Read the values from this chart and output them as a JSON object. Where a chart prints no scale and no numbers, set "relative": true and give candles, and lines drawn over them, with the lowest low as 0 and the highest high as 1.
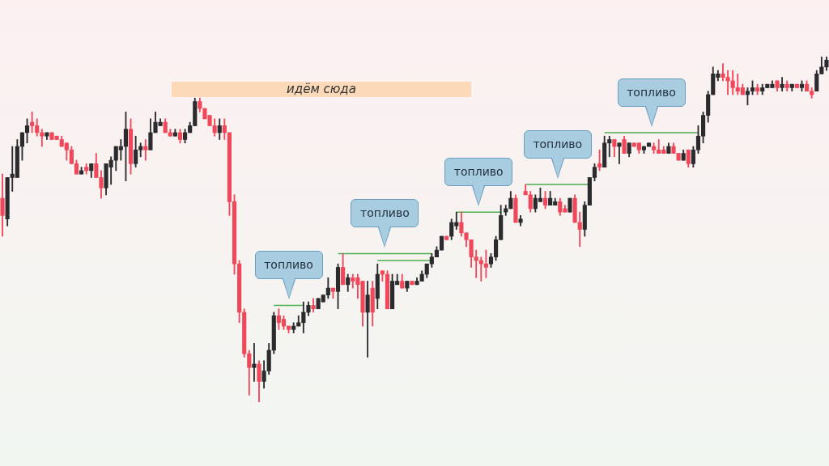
{
  "chart_data": {
    "type": "candlestick",
    "relative": true,
    "legend": false,
    "annotations": [
      "идём сюда",
      "топливо",
      "топливо",
      "топливо",
      "топливо",
      "топливо"
    ],
    "colors": [
      "#f0485a",
      "#2b2b2e",
      "#2b2b2e",
      "#2b2b2e",
      "#2b2b2e",
      "#2b2b2e",
      "#f0485a",
      "#f0485a",
      "#f0485a",
      "#2b2b2e",
      "#f0485a",
      "#f0485a",
      "#f0485a",
      "#f0485a",
      "#f0485a",
      "#f0485a",
      "#2b2b2e",
      "#f0485a",
      "#2b2b2e",
      "#f0485a",
      "#f0485a",
      "#2b2b2e",
      "#2b2b2e",
      "#2b2b2e",
      "#2b2b2e",
      "#2b2b2e",
      "#f0485a",
      "#2b2b2e",
      "#2b2b2e",
      "#f0485a",
      "#2b2b2e",
      "#2b2b2e",
      "#2b2b2e",
      "#f0485a",
      "#f0485a",
      "#2b2b2e",
      "#f0485a",
      "#2b2b2e",
      "#2b2b2e",
      "#2b2b2e",
      "#f0485a",
      "#f0485a",
      "#f0485a",
      "#f0485a",
      "#2b2b2e",
      "#f0485a",
      "#f0485a",
      "#f0485a",
      "#f0485a",
      "#f0485a",
      "#f0485a",
      "#2b2b2e",
      "#f0485a",
      "#2b2b2e",
      "#2b2b2e",
      "#2b2b2e",
      "#f0485a",
      "#f0485a",
      "#f0485a",
      "#2b2b2e",
      "#2b2b2e",
      "#2b2b2e",
      "#2b2b2e",
      "#f0485a",
      "#2b2b2e",
      "#2b2b2e",
      "#2b2b2e",
      "#f0485a",
      "#2b2b2e",
      "#f0485a",
      "#2b2b2e",
      "#f0485a",
      "#f0485a",
      "#f0485a",
      "#2b2b2e",
      "#f0485a",
      "#2b2b2e",
      "#f0485a",
      "#f0485a",
      "#2b2b2e",
      "#2b2b2e",
      "#f0485a",
      "#2b2b2e",
      "#f0485a",
      "#2b2b2e",
      "#2b2b2e",
      "#2b2b2e",
      "#2b2b2e",
      "#2b2b2e",
      "#2b2b2e",
      "#f0485a",
      "#2b2b2e",
      "#2b2b2e",
      "#f0485a",
      "#f0485a",
      "#f0485a",
      "#f0485a",
      "#f0485a",
      "#f0485a",
      "#2b2b2e",
      "#2b2b2e",
      "#2b2b2e",
      "#2b2b2e",
      "#2b2b2e",
      "#f0485a",
      "#2b2b2e",
      "#f0485a",
      "#f0485a",
      "#2b2b2e",
      "#2b2b2e",
      "#f0485a",
      "#2b2b2e",
      "#2b2b2e",
      "#f0485a",
      "#f0485a",
      "#2b2b2e",
      "#f0485a",
      "#f0485a",
      "#2b2b2e",
      "#2b2b2e",
      "#2b2b2e",
      "#f0485a",
      "#2b2b2e",
      "#2b2b2e",
      "#f0485a",
      "#2b2b2e",
      "#f0485a",
      "#2b2b2e",
      "#f0485a",
      "#f0485a",
      "#2b2b2e",
      "#2b2b2e",
      "#f0485a",
      "#f0485a",
      "#f0485a",
      "#2b2b2e",
      "#f0485a",
      "#f0485a",
      "#2b2b2e",
      "#f0485a",
      "#2b2b2e",
      "#2b2b2e",
      "#2b2b2e",
      "#2b2b2e",
      "#2b2b2e",
      "#2b2b2e",
      "#f0485a",
      "#f0485a",
      "#f0485a",
      "#f0485a",
      "#f0485a",
      "#2b2b2e",
      "#2b2b2e",
      "#f0485a",
      "#2b2b2e",
      "#2b2b2e",
      "#2b2b2e",
      "#f0485a",
      "#2b2b2e",
      "#f0485a",
      "#2b2b2e",
      "#f0485a",
      "#2b2b2e",
      "#f0485a",
      "#f0485a",
      "#2b2b2e",
      "#2b2b2e",
      "#2b2b2e"
    ],
    "categories": [
      null,
      null,
      null,
      null,
      null,
      null,
      null,
      null,
      null,
      null,
      null,
      null,
      null,
      null,
      null,
      null,
      null,
      null,
      null,
      null,
      null,
      null,
      null,
      null,
      null,
      null,
      null,
      null,
      null,
      null,
      null,
      null,
      null,
      null,
      null,
      null,
      null,
      null,
      null,
      null,
      null,
      null,
      null,
      null,
      null,
      null,
      null,
      null,
      null,
      null,
      null,
      null,
      null,
      null,
      null,
      null,
      null,
      null,
      null,
      null,
      null,
      null,
      null,
      null,
      null,
      null,
      null,
      null,
      null,
      null,
      null,
      null,
      null,
      null,
      null,
      null,
      null,
      null,
      null,
      null,
      null,
      null,
      null,
      null,
      null,
      null,
      null,
      null,
      null,
      null,
      null,
      null,
      null,
      null,
      null,
      null,
      null,
      null,
      null,
      null,
      null,
      null,
      null,
      null,
      null,
      null,
      null,
      null,
      null,
      null,
      null,
      null,
      null,
      null,
      null,
      null,
      null,
      null,
      null,
      null,
      null,
      null,
      null,
      null,
      null,
      null,
      null,
      null,
      null,
      null,
      null,
      null,
      null,
      null,
      null,
      null,
      null,
      null,
      null,
      null,
      null,
      null,
      null,
      null,
      null,
      null,
      null,
      null,
      null,
      null,
      null,
      null,
      null,
      null,
      null,
      null,
      null,
      null,
      null,
      null,
      null,
      null,
      null,
      null,
      null,
      null,
      null,
      null
    ],
    "ohlc": [
      [
        0.59,
        0.66,
        0.48,
        0.54
      ],
      [
        0.53,
        0.65,
        0.51,
        0.65
      ],
      [
        0.65,
        0.74,
        0.61,
        0.66
      ],
      [
        0.65,
        0.76,
        0.65,
        0.74
      ],
      [
        0.74,
        0.78,
        0.7,
        0.78
      ],
      [
        0.78,
        0.82,
        0.75,
        0.8
      ],
      [
        0.81,
        0.84,
        0.78,
        0.8
      ],
      [
        0.8,
        0.82,
        0.77,
        0.78
      ],
      [
        0.78,
        0.79,
        0.74,
        0.77
      ],
      [
        0.77,
        0.78,
        0.76,
        0.78
      ],
      [
        0.78,
        0.78,
        0.76,
        0.76
      ],
      [
        0.77,
        0.77,
        0.76,
        0.76
      ],
      [
        0.76,
        0.77,
        0.74,
        0.74
      ],
      [
        0.75,
        0.75,
        0.7,
        0.73
      ],
      [
        0.73,
        0.74,
        0.69,
        0.69
      ],
      [
        0.69,
        0.7,
        0.66,
        0.66
      ],
      [
        0.66,
        0.68,
        0.66,
        0.67
      ],
      [
        0.68,
        0.69,
        0.66,
        0.67
      ],
      [
        0.67,
        0.69,
        0.65,
        0.69
      ],
      [
        0.69,
        0.72,
        0.65,
        0.65
      ],
      [
        0.65,
        0.67,
        0.59,
        0.62
      ],
      [
        0.62,
        0.69,
        0.6,
        0.69
      ],
      [
        0.68,
        0.71,
        0.63,
        0.7
      ],
      [
        0.7,
        0.74,
        0.67,
        0.74
      ],
      [
        0.73,
        0.76,
        0.7,
        0.74
      ],
      [
        0.74,
        0.84,
        0.64,
        0.79
      ],
      [
        0.79,
        0.82,
        0.66,
        0.69
      ],
      [
        0.69,
        0.77,
        0.68,
        0.73
      ],
      [
        0.73,
        0.75,
        0.71,
        0.74
      ],
      [
        0.74,
        0.76,
        0.7,
        0.73
      ],
      [
        0.73,
        0.82,
        0.73,
        0.78
      ],
      [
        0.78,
        0.84,
        0.78,
        0.81
      ],
      [
        0.8,
        0.82,
        0.8,
        0.81
      ],
      [
        0.81,
        0.82,
        0.78,
        0.78
      ],
      [
        0.78,
        0.79,
        0.77,
        0.77
      ],
      [
        0.77,
        0.79,
        0.77,
        0.78
      ],
      [
        0.78,
        0.79,
        0.75,
        0.76
      ],
      [
        0.76,
        0.79,
        0.75,
        0.78
      ],
      [
        0.78,
        0.81,
        0.78,
        0.8
      ],
      [
        0.8,
        0.88,
        0.8,
        0.87
      ],
      [
        0.87,
        0.88,
        0.84,
        0.85
      ],
      [
        0.85,
        0.85,
        0.82,
        0.82
      ],
      [
        0.83,
        0.83,
        0.8,
        0.8
      ],
      [
        0.8,
        0.82,
        0.77,
        0.78
      ],
      [
        0.78,
        0.82,
        0.76,
        0.8
      ],
      [
        0.8,
        0.82,
        0.76,
        0.78
      ],
      [
        0.78,
        0.78,
        0.54,
        0.58
      ],
      [
        0.58,
        0.6,
        0.37,
        0.4
      ],
      [
        0.4,
        0.41,
        0.23,
        0.26
      ],
      [
        0.26,
        0.27,
        0.13,
        0.14
      ],
      [
        0.14,
        0.15,
        0.02,
        0.1
      ],
      [
        0.1,
        0.17,
        0.06,
        0.11
      ],
      [
        0.11,
        0.12,
        0,
        0.06
      ],
      [
        0.06,
        0.12,
        0.04,
        0.09
      ],
      [
        0.09,
        0.17,
        0.08,
        0.15
      ],
      [
        0.15,
        0.26,
        0.14,
        0.25
      ],
      [
        0.25,
        0.27,
        0.21,
        0.23
      ],
      [
        0.24,
        0.25,
        0.21,
        0.22
      ],
      [
        0.22,
        0.22,
        0.2,
        0.21
      ],
      [
        0.21,
        0.23,
        0.2,
        0.22
      ],
      [
        0.22,
        0.25,
        0.22,
        0.23
      ],
      [
        0.23,
        0.29,
        0.2,
        0.26
      ],
      [
        0.26,
        0.29,
        0.25,
        0.28
      ],
      [
        0.28,
        0.3,
        0.26,
        0.27
      ],
      [
        0.27,
        0.3,
        0.27,
        0.3
      ],
      [
        0.29,
        0.31,
        0.29,
        0.31
      ],
      [
        0.31,
        0.36,
        0.3,
        0.33
      ],
      [
        0.33,
        0.33,
        0.3,
        0.32
      ],
      [
        0.32,
        0.4,
        0.27,
        0.39
      ],
      [
        0.39,
        0.43,
        0.34,
        0.34
      ],
      [
        0.34,
        0.37,
        0.32,
        0.36
      ],
      [
        0.36,
        0.37,
        0.33,
        0.35
      ],
      [
        0.36,
        0.37,
        0.3,
        0.34
      ],
      [
        0.35,
        0.35,
        0.22,
        0.26
      ],
      [
        0.26,
        0.35,
        0.13,
        0.31
      ],
      [
        0.33,
        0.35,
        0.22,
        0.26
      ],
      [
        0.3,
        0.4,
        0.27,
        0.37
      ],
      [
        0.38,
        0.38,
        0.35,
        0.37
      ],
      [
        0.37,
        0.38,
        0.27,
        0.27
      ],
      [
        0.27,
        0.37,
        0.27,
        0.35
      ],
      [
        0.34,
        0.37,
        0.34,
        0.35
      ],
      [
        0.35,
        0.37,
        0.33,
        0.33
      ],
      [
        0.33,
        0.35,
        0.32,
        0.35
      ],
      [
        0.35,
        0.35,
        0.34,
        0.34
      ],
      [
        0.34,
        0.36,
        0.34,
        0.35
      ],
      [
        0.35,
        0.38,
        0.35,
        0.37
      ],
      [
        0.37,
        0.4,
        0.36,
        0.4
      ],
      [
        0.4,
        0.43,
        0.39,
        0.42
      ],
      [
        0.42,
        0.45,
        0.42,
        0.44
      ],
      [
        0.44,
        0.48,
        0.44,
        0.48
      ],
      [
        0.48,
        0.48,
        0.47,
        0.47
      ],
      [
        0.48,
        0.53,
        0.47,
        0.52
      ],
      [
        0.51,
        0.55,
        0.5,
        0.52
      ],
      [
        0.52,
        0.55,
        0.48,
        0.49
      ],
      [
        0.49,
        0.49,
        0.45,
        0.47
      ],
      [
        0.47,
        0.47,
        0.39,
        0.42
      ],
      [
        0.42,
        0.44,
        0.36,
        0.41
      ],
      [
        0.41,
        0.42,
        0.35,
        0.4
      ],
      [
        0.4,
        0.44,
        0.36,
        0.39
      ],
      [
        0.4,
        0.43,
        0.39,
        0.42
      ],
      [
        0.42,
        0.48,
        0.41,
        0.47
      ],
      [
        0.47,
        0.57,
        0.47,
        0.54
      ],
      [
        0.55,
        0.57,
        0.54,
        0.56
      ],
      [
        0.56,
        0.61,
        0.56,
        0.59
      ],
      [
        0.59,
        0.6,
        0.52,
        0.52
      ],
      [
        0.52,
        0.54,
        0.51,
        0.53
      ],
      [
        0.61,
        0.63,
        0.6,
        0.6
      ],
      [
        0.6,
        0.61,
        0.55,
        0.56
      ],
      [
        0.56,
        0.6,
        0.55,
        0.59
      ],
      [
        0.58,
        0.62,
        0.58,
        0.59
      ],
      [
        0.59,
        0.61,
        0.56,
        0.57
      ],
      [
        0.57,
        0.61,
        0.57,
        0.59
      ],
      [
        0.57,
        0.59,
        0.57,
        0.58
      ],
      [
        0.58,
        0.59,
        0.54,
        0.55
      ],
      [
        0.56,
        0.57,
        0.55,
        0.55
      ],
      [
        0.55,
        0.59,
        0.55,
        0.59
      ],
      [
        0.59,
        0.6,
        0.52,
        0.52
      ],
      [
        0.52,
        0.55,
        0.45,
        0.5
      ],
      [
        0.5,
        0.58,
        0.48,
        0.57
      ],
      [
        0.57,
        0.65,
        0.57,
        0.65
      ],
      [
        0.65,
        0.69,
        0.64,
        0.68
      ],
      [
        0.69,
        0.73,
        0.67,
        0.68
      ],
      [
        0.68,
        0.77,
        0.68,
        0.75
      ],
      [
        0.75,
        0.77,
        0.71,
        0.76
      ],
      [
        0.76,
        0.76,
        0.71,
        0.74
      ],
      [
        0.74,
        0.75,
        0.69,
        0.75
      ],
      [
        0.76,
        0.77,
        0.72,
        0.72
      ],
      [
        0.72,
        0.75,
        0.71,
        0.75
      ],
      [
        0.75,
        0.75,
        0.74,
        0.74
      ],
      [
        0.75,
        0.75,
        0.72,
        0.73
      ],
      [
        0.73,
        0.74,
        0.72,
        0.74
      ],
      [
        0.74,
        0.75,
        0.74,
        0.75
      ],
      [
        0.74,
        0.75,
        0.72,
        0.73
      ],
      [
        0.73,
        0.76,
        0.72,
        0.72
      ],
      [
        0.73,
        0.74,
        0.72,
        0.72
      ],
      [
        0.72,
        0.75,
        0.72,
        0.74
      ],
      [
        0.74,
        0.75,
        0.72,
        0.72
      ],
      [
        0.72,
        0.72,
        0.7,
        0.7
      ],
      [
        0.7,
        0.73,
        0.7,
        0.72
      ],
      [
        0.73,
        0.73,
        0.68,
        0.69
      ],
      [
        0.69,
        0.74,
        0.68,
        0.73
      ],
      [
        0.73,
        0.8,
        0.72,
        0.77
      ],
      [
        0.77,
        0.84,
        0.75,
        0.83
      ],
      [
        0.83,
        0.9,
        0.81,
        0.89
      ],
      [
        0.89,
        0.97,
        0.89,
        0.95
      ],
      [
        0.94,
        0.96,
        0.93,
        0.95
      ],
      [
        0.95,
        0.98,
        0.93,
        0.94
      ],
      [
        0.94,
        0.96,
        0.89,
        0.93
      ],
      [
        0.93,
        0.96,
        0.89,
        0.91
      ],
      [
        0.91,
        0.95,
        0.89,
        0.9
      ],
      [
        0.91,
        0.92,
        0.89,
        0.89
      ],
      [
        0.89,
        0.91,
        0.86,
        0.9
      ],
      [
        0.9,
        0.93,
        0.89,
        0.91
      ],
      [
        0.91,
        0.92,
        0.89,
        0.9
      ],
      [
        0.9,
        0.92,
        0.89,
        0.91
      ],
      [
        0.91,
        0.92,
        0.91,
        0.92
      ],
      [
        0.91,
        0.93,
        0.91,
        0.92
      ],
      [
        0.93,
        0.93,
        0.9,
        0.91
      ],
      [
        0.91,
        0.94,
        0.9,
        0.92
      ],
      [
        0.92,
        0.93,
        0.9,
        0.91
      ],
      [
        0.91,
        0.92,
        0.9,
        0.92
      ],
      [
        0.92,
        0.92,
        0.91,
        0.91
      ],
      [
        0.91,
        0.93,
        0.9,
        0.92
      ],
      [
        0.92,
        0.93,
        0.9,
        0.9
      ],
      [
        0.9,
        0.91,
        0.88,
        0.89
      ],
      [
        0.9,
        0.96,
        0.9,
        0.95
      ],
      [
        0.95,
        1,
        0.95,
        0.97
      ],
      [
        0.97,
        1,
        0.96,
        0.99
      ]
    ],
    "series": [
      {
        "type": "line",
        "color": "#4caf50",
        "values": [
          null,
          null,
          null,
          null,
          null,
          null,
          null,
          null,
          null,
          null,
          null,
          null,
          null,
          null,
          null,
          null,
          null,
          null,
          null,
          null,
          null,
          null,
          null,
          null,
          null,
          null,
          null,
          null,
          null,
          null,
          null,
          null,
          null,
          null,
          null,
          null,
          null,
          null,
          null,
          null,
          null,
          null,
          null,
          null,
          null,
          null,
          null,
          null,
          null,
          null,
          null,
          null,
          null,
          null,
          null,
          0.28,
          0.28,
          0.28,
          0.28,
          0.28,
          0.28,
          0.28,
          null,
          null,
          null,
          null,
          null,
          null,
          0.43,
          0.43,
          0.43,
          0.43,
          0.43,
          0.43,
          0.43,
          0.43,
          0.43,
          0.43,
          0.43,
          0.43,
          0.43,
          0.43,
          0.43,
          0.43,
          0.43,
          0.43,
          0.43,
          0.43,
          null,
          null,
          null,
          null,
          0.55,
          0.55,
          0.55,
          0.55,
          0.55,
          0.55,
          0.55,
          0.55,
          0.55,
          0.55,
          null,
          null,
          null,
          null,
          0.63,
          0.63,
          0.63,
          0.63,
          0.63,
          0.63,
          0.63,
          0.63,
          0.63,
          0.63,
          0.63,
          0.63,
          0.63,
          0.63,
          null,
          null,
          0.78,
          0.78,
          0.78,
          0.78,
          0.78,
          0.78,
          0.78,
          0.78,
          0.78,
          0.78,
          0.78,
          0.78,
          0.78,
          0.78,
          0.78,
          0.78,
          0.78,
          0.78,
          0.78,
          0.78,
          null,
          null,
          null,
          null,
          null,
          null,
          null,
          null,
          null,
          null,
          null,
          null,
          null,
          null,
          null,
          null,
          null,
          null,
          null,
          null,
          null,
          null,
          null,
          null,
          null,
          null
        ]
      },
      {
        "type": "line",
        "color": "#4caf50",
        "values": [
          null,
          null,
          null,
          null,
          null,
          null,
          null,
          null,
          null,
          null,
          null,
          null,
          null,
          null,
          null,
          null,
          null,
          null,
          null,
          null,
          null,
          null,
          null,
          null,
          null,
          null,
          null,
          null,
          null,
          null,
          null,
          null,
          null,
          null,
          null,
          null,
          null,
          null,
          null,
          null,
          null,
          null,
          null,
          null,
          null,
          null,
          null,
          null,
          null,
          null,
          null,
          null,
          null,
          null,
          null,
          null,
          null,
          null,
          null,
          null,
          null,
          null,
          null,
          null,
          null,
          null,
          null,
          null,
          null,
          null,
          null,
          null,
          null,
          null,
          null,
          null,
          0.41,
          0.41,
          0.41,
          0.41,
          0.41,
          0.41,
          0.41,
          0.41,
          0.41,
          0.41,
          0.41,
          0.41,
          null,
          null,
          null,
          null,
          null,
          null,
          null,
          null,
          null,
          null,
          null,
          null,
          null,
          null,
          null,
          null,
          null,
          null,
          null,
          null,
          null,
          null,
          null,
          null,
          null,
          null,
          null,
          null,
          null,
          null,
          null,
          null,
          null,
          null,
          null,
          null,
          null,
          null,
          null,
          null,
          null,
          null,
          null,
          null,
          null,
          null,
          null,
          null,
          null,
          null,
          null,
          null,
          null,
          null,
          null,
          null,
          null,
          null,
          null,
          null,
          null,
          null,
          null,
          null,
          null,
          null,
          null,
          null,
          null,
          null,
          null,
          null,
          null,
          null,
          null,
          null,
          null,
          null,
          null,
          null
        ]
      }
    ]
  }
}
